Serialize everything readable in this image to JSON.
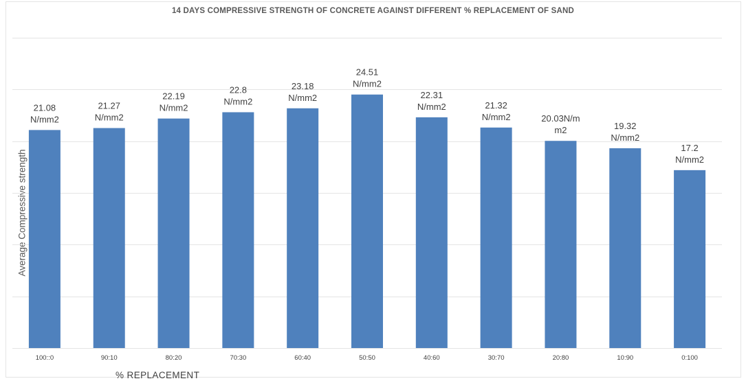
{
  "chart_data": {
    "type": "bar",
    "title": "14 DAYS COMPRESSIVE STRENGTH OF CONCRETE AGAINST DIFFERENT % REPLACEMENT OF SAND",
    "xlabel": "% REPLACEMENT",
    "ylabel": "Average Compressive strength",
    "categories": [
      "100::0",
      "90:10",
      "80:20",
      "70:30",
      "60:40",
      "50:50",
      "40:60",
      "30:70",
      "20:80",
      "10:90",
      "0:100"
    ],
    "values": [
      21.08,
      21.27,
      22.19,
      22.8,
      23.18,
      24.51,
      22.31,
      21.32,
      20.03,
      19.32,
      17.2
    ],
    "data_labels": [
      [
        "21.08",
        "N/mm2"
      ],
      [
        "21.27",
        "N/mm2"
      ],
      [
        "22.19",
        "N/mm2"
      ],
      [
        "22.8",
        "N/mm2"
      ],
      [
        "23.18",
        "N/mm2"
      ],
      [
        "24.51",
        "N/mm2"
      ],
      [
        "22.31",
        "N/mm2"
      ],
      [
        "21.32",
        "N/mm2"
      ],
      [
        "20.03N/m",
        "m2"
      ],
      [
        "19.32",
        "N/mm2"
      ],
      [
        "17.2",
        "N/mm2"
      ]
    ],
    "ylim": [
      0,
      30
    ],
    "grid": true,
    "legend": "none",
    "bar_color": "#4f81bd"
  }
}
